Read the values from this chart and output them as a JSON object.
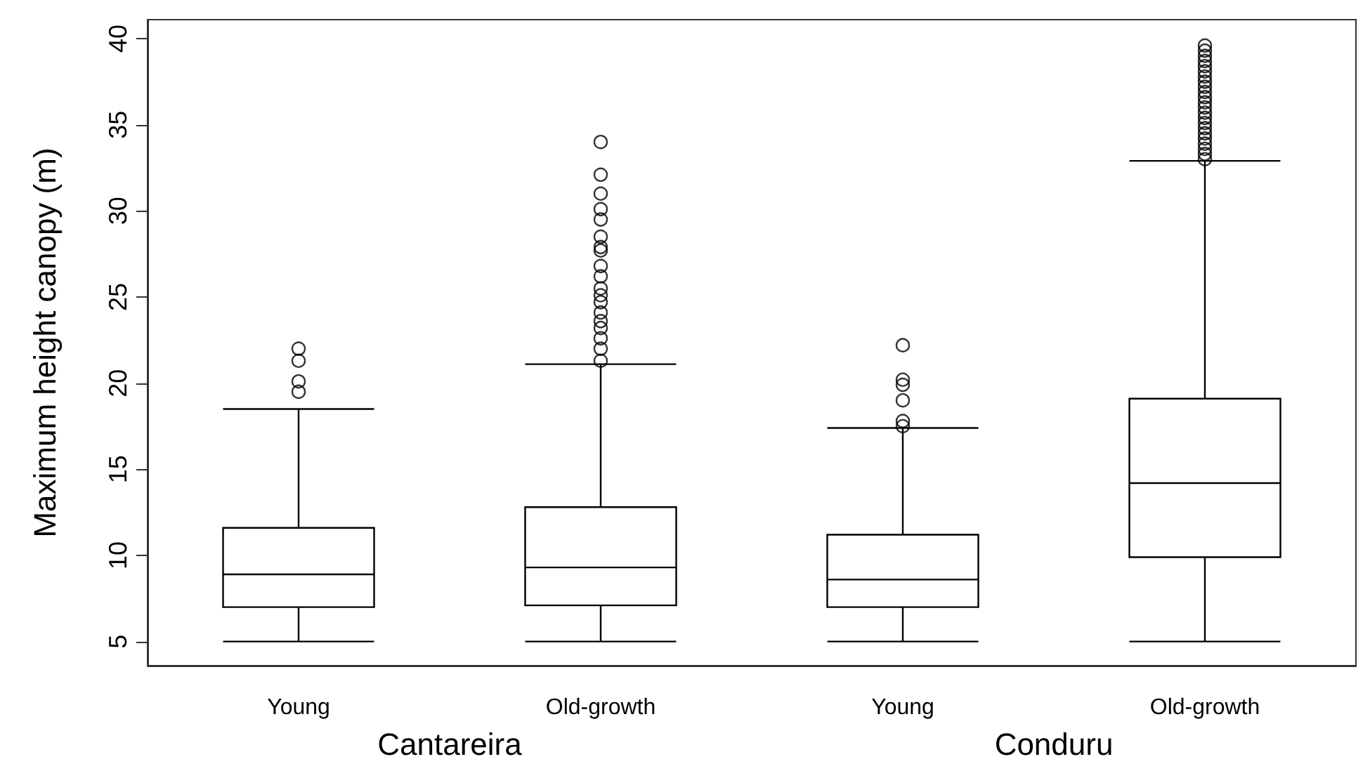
{
  "chart_data": {
    "type": "box",
    "ylabel": "Maximum height canopy (m)",
    "categories": [
      "Young",
      "Old-growth",
      "Young",
      "Old-growth"
    ],
    "annotations": [
      "Cantareira",
      "Conduru"
    ],
    "boxes": [
      {
        "low": 5,
        "q1": 7.0,
        "median": 8.9,
        "q3": 11.6,
        "high": 18.5,
        "outliers": [
          19.5,
          20.1,
          21.3,
          22.0
        ]
      },
      {
        "low": 5,
        "q1": 7.1,
        "median": 9.3,
        "q3": 12.8,
        "high": 21.1,
        "outliers": [
          21.3,
          22.0,
          22.6,
          23.2,
          23.6,
          24.1,
          24.7,
          25.1,
          25.5,
          26.2,
          26.8,
          27.7,
          27.9,
          28.5,
          29.5,
          30.1,
          31.0,
          32.1,
          34.0
        ]
      },
      {
        "low": 5,
        "q1": 7.0,
        "median": 8.6,
        "q3": 11.2,
        "high": 17.4,
        "outliers": [
          17.5,
          17.8,
          19.0,
          19.9,
          20.2,
          22.2
        ]
      },
      {
        "low": 5,
        "q1": 9.9,
        "median": 14.2,
        "q3": 19.1,
        "high": 32.9,
        "outliers": [
          33.0,
          33.3,
          33.6,
          33.9,
          34.2,
          34.5,
          34.8,
          35.1,
          35.4,
          35.7,
          36.0,
          36.3,
          36.6,
          36.9,
          37.2,
          37.5,
          37.8,
          38.1,
          38.4,
          38.7,
          39.0,
          39.3,
          39.6
        ]
      }
    ],
    "color": "#000000",
    "ylim": [
      3.6,
      41.1
    ],
    "yticks": [
      5,
      10,
      15,
      20,
      25,
      30,
      35,
      40
    ],
    "grid": false
  }
}
